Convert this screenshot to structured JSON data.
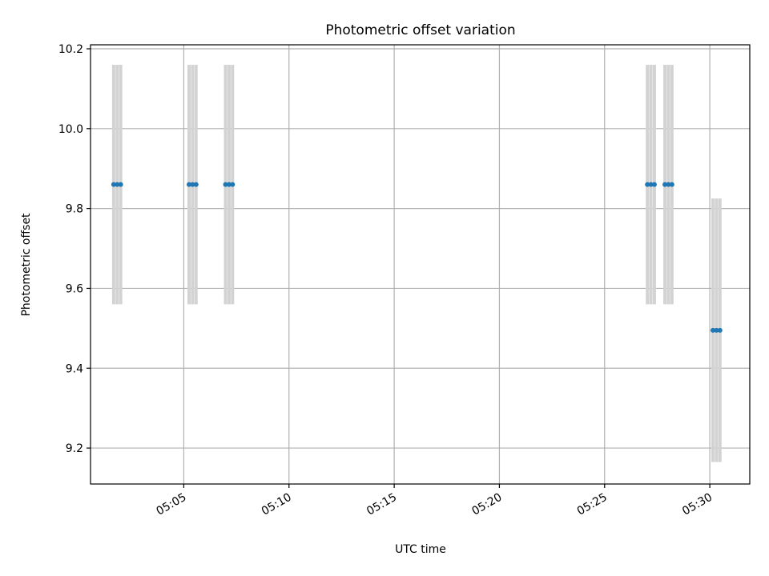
{
  "chart_data": {
    "type": "scatter",
    "title": "Photometric offset variation",
    "xlabel": "UTC time",
    "ylabel": "Photometric offset",
    "x_ticks": [
      "05:05",
      "05:10",
      "05:15",
      "05:20",
      "05:25",
      "05:30"
    ],
    "xlim": [
      "05:00:34",
      "05:31:54"
    ],
    "y_ticks": [
      "9.2",
      "9.4",
      "9.6",
      "9.8",
      "10.0",
      "10.2"
    ],
    "ylim": [
      9.11,
      10.21
    ],
    "grid": true,
    "marker_color": "#1f77b4",
    "errorbar_color": "#d3d3d3",
    "series": [
      {
        "points": [
          {
            "t": "05:01:40",
            "y": 9.86,
            "err": 0.3
          },
          {
            "t": "05:01:50",
            "y": 9.86,
            "err": 0.3
          },
          {
            "t": "05:02:00",
            "y": 9.86,
            "err": 0.3
          },
          {
            "t": "05:05:15",
            "y": 9.86,
            "err": 0.3
          },
          {
            "t": "05:05:25",
            "y": 9.86,
            "err": 0.3
          },
          {
            "t": "05:05:35",
            "y": 9.86,
            "err": 0.3
          },
          {
            "t": "05:06:59",
            "y": 9.86,
            "err": 0.3
          },
          {
            "t": "05:07:09",
            "y": 9.86,
            "err": 0.3
          },
          {
            "t": "05:07:19",
            "y": 9.86,
            "err": 0.3
          },
          {
            "t": "05:27:02",
            "y": 9.86,
            "err": 0.3
          },
          {
            "t": "05:27:12",
            "y": 9.86,
            "err": 0.3
          },
          {
            "t": "05:27:22",
            "y": 9.86,
            "err": 0.3
          },
          {
            "t": "05:27:52",
            "y": 9.86,
            "err": 0.3
          },
          {
            "t": "05:28:02",
            "y": 9.86,
            "err": 0.3
          },
          {
            "t": "05:28:12",
            "y": 9.86,
            "err": 0.3
          },
          {
            "t": "05:30:09",
            "y": 9.495,
            "err": 0.33
          },
          {
            "t": "05:30:19",
            "y": 9.495,
            "err": 0.33
          },
          {
            "t": "05:30:29",
            "y": 9.495,
            "err": 0.33
          }
        ]
      }
    ]
  }
}
